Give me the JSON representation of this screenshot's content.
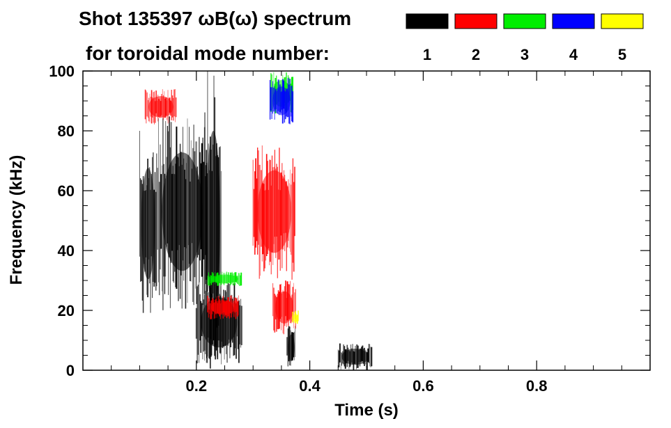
{
  "chart_data": {
    "type": "heatmap",
    "title_line1": "Shot 135397 ωB(ω) spectrum",
    "title_line2": "for toroidal mode number:",
    "xlabel": "Time (s)",
    "ylabel": "Frequency (kHz)",
    "xlim": [
      0.0,
      1.0
    ],
    "ylim": [
      0,
      100
    ],
    "x_ticks": [
      0.2,
      0.4,
      0.6,
      0.8
    ],
    "x_tick_labels": [
      "0.2",
      "0.4",
      "0.6",
      "0.8"
    ],
    "y_ticks": [
      0,
      20,
      40,
      60,
      80,
      100
    ],
    "y_tick_labels": [
      "0",
      "20",
      "40",
      "60",
      "80",
      "100"
    ],
    "legend_position": "top-right",
    "legend": [
      {
        "label": "1",
        "color": "#000000"
      },
      {
        "label": "2",
        "color": "#ff0000"
      },
      {
        "label": "3",
        "color": "#00ee00"
      },
      {
        "label": "4",
        "color": "#0000ff"
      },
      {
        "label": "5",
        "color": "#ffff00"
      }
    ],
    "regions": [
      {
        "mode": 1,
        "t": [
          0.1,
          0.13
        ],
        "f": [
          18,
          80
        ]
      },
      {
        "mode": 1,
        "t": [
          0.13,
          0.22
        ],
        "f": [
          20,
          86
        ]
      },
      {
        "mode": 1,
        "t": [
          0.215,
          0.245
        ],
        "f": [
          0,
          100
        ]
      },
      {
        "mode": 1,
        "t": [
          0.2,
          0.28
        ],
        "f": [
          2,
          30
        ]
      },
      {
        "mode": 1,
        "t": [
          0.36,
          0.375
        ],
        "f": [
          0,
          15
        ]
      },
      {
        "mode": 1,
        "t": [
          0.45,
          0.51
        ],
        "f": [
          0,
          9
        ]
      },
      {
        "mode": 2,
        "t": [
          0.11,
          0.165
        ],
        "f": [
          82,
          94
        ]
      },
      {
        "mode": 2,
        "t": [
          0.22,
          0.275
        ],
        "f": [
          17,
          25
        ]
      },
      {
        "mode": 2,
        "t": [
          0.3,
          0.375
        ],
        "f": [
          30,
          76
        ]
      },
      {
        "mode": 2,
        "t": [
          0.335,
          0.375
        ],
        "f": [
          12,
          30
        ]
      },
      {
        "mode": 3,
        "t": [
          0.22,
          0.28
        ],
        "f": [
          28,
          33
        ]
      },
      {
        "mode": 3,
        "t": [
          0.33,
          0.37
        ],
        "f": [
          85,
          100
        ]
      },
      {
        "mode": 4,
        "t": [
          0.33,
          0.37
        ],
        "f": [
          82,
          98
        ]
      },
      {
        "mode": 5,
        "t": [
          0.37,
          0.38
        ],
        "f": [
          15,
          20
        ]
      }
    ]
  }
}
